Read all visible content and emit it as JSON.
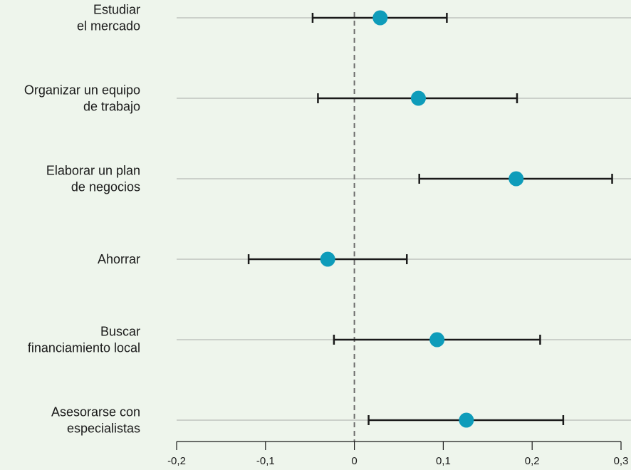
{
  "chart_data": {
    "type": "scatter",
    "title": "",
    "xlabel": "",
    "ylabel": "",
    "xlim": [
      -0.2,
      0.3
    ],
    "xticks": [
      -0.2,
      -0.1,
      0,
      0.1,
      0.2,
      0.3
    ],
    "xtick_labels": [
      "-0,2",
      "-0,1",
      "0",
      "0,1",
      "0,2",
      "0,3"
    ],
    "reference_line": 0,
    "grid": "horizontal",
    "categories": [
      [
        "Estudiar",
        "el mercado"
      ],
      [
        "Organizar un equipo",
        "de trabajo"
      ],
      [
        "Elaborar un plan",
        "de negocios"
      ],
      [
        "Ahorrar"
      ],
      [
        "Buscar",
        "financiamiento local"
      ],
      [
        "Asesorarse con",
        "especialistas"
      ]
    ],
    "points": [
      {
        "estimate": 0.029,
        "lower": -0.047,
        "upper": 0.104
      },
      {
        "estimate": 0.072,
        "lower": -0.041,
        "upper": 0.183
      },
      {
        "estimate": 0.182,
        "lower": 0.073,
        "upper": 0.29
      },
      {
        "estimate": -0.03,
        "lower": -0.119,
        "upper": 0.059
      },
      {
        "estimate": 0.093,
        "lower": -0.023,
        "upper": 0.209
      },
      {
        "estimate": 0.126,
        "lower": 0.016,
        "upper": 0.235
      }
    ],
    "colors": {
      "marker": "#0e9cba",
      "error_bar": "#1a1a1a",
      "gridline": "#a8aca7",
      "reference_line": "#6b6b6b",
      "background": "#eef5ec"
    }
  }
}
